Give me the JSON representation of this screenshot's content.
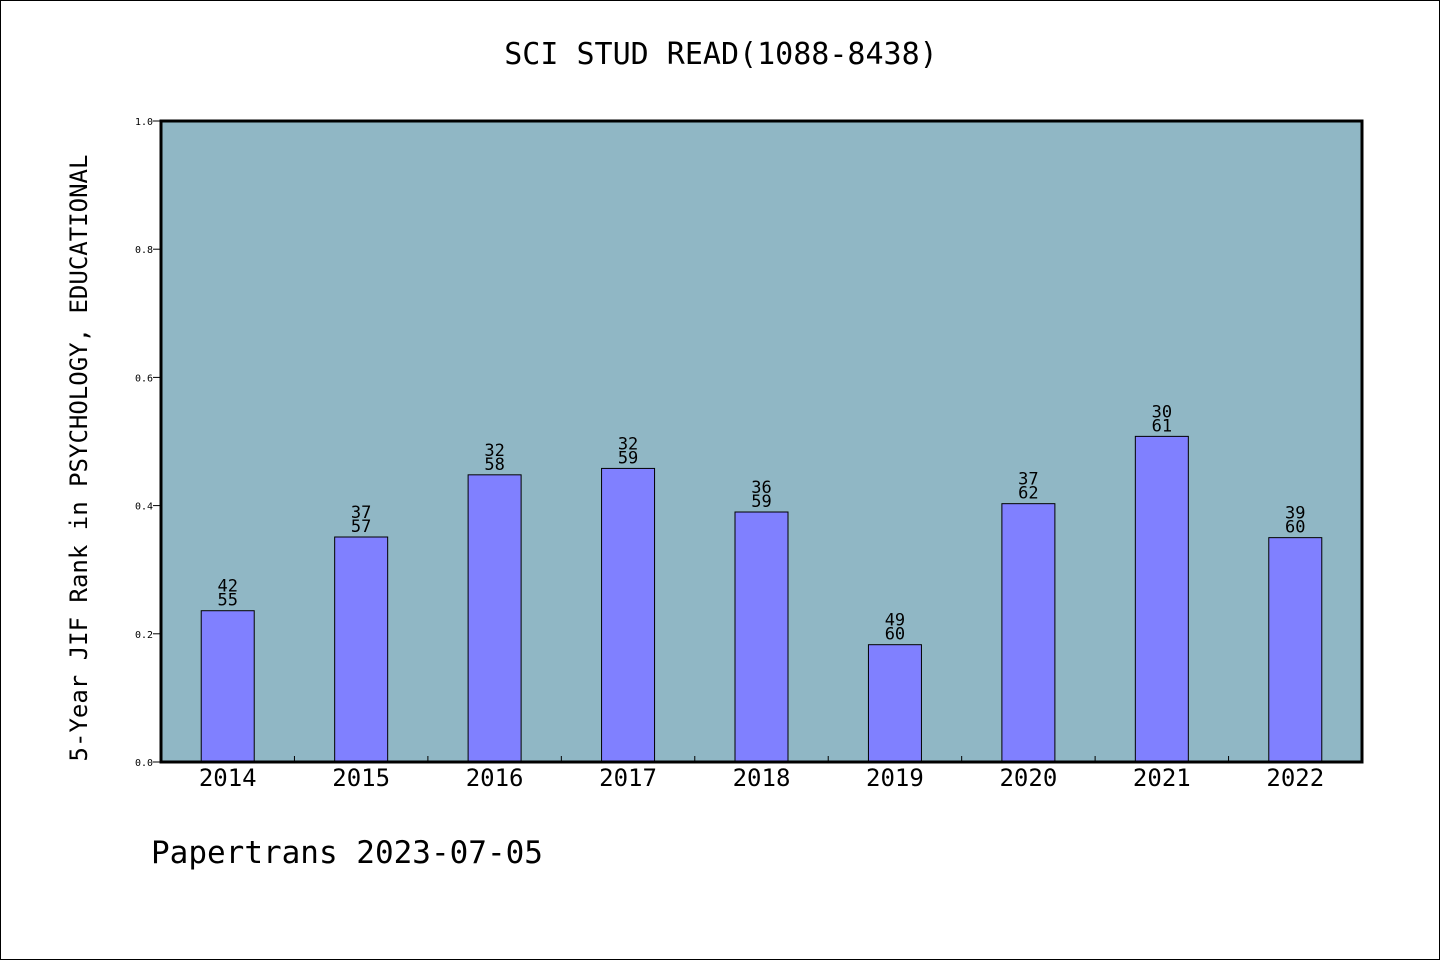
{
  "chart_data": {
    "type": "bar",
    "title": "SCI STUD READ(1088-8438)",
    "ylabel": "5-Year JIF Rank in PSYCHOLOGY, EDUCATIONAL",
    "xlabel": "",
    "categories": [
      "2014",
      "2015",
      "2016",
      "2017",
      "2018",
      "2019",
      "2020",
      "2021",
      "2022"
    ],
    "values": [
      0.236,
      0.351,
      0.448,
      0.458,
      0.39,
      0.183,
      0.403,
      0.508,
      0.35
    ],
    "labels_top": [
      "42",
      "37",
      "32",
      "32",
      "36",
      "49",
      "37",
      "30",
      "39"
    ],
    "labels_bottom": [
      "55",
      "57",
      "58",
      "59",
      "59",
      "60",
      "62",
      "61",
      "60"
    ],
    "ylim": [
      0,
      1.0
    ],
    "yticks": [
      "0.0",
      "0.2",
      "0.4",
      "0.6",
      "0.8",
      "1.0"
    ],
    "grid": false,
    "legend": "none",
    "colors": {
      "plot_background": "#90b7c5",
      "bar_fill": "#8080ff",
      "bar_edge": "#000000"
    }
  },
  "footer": "Papertrans 2023-07-05"
}
